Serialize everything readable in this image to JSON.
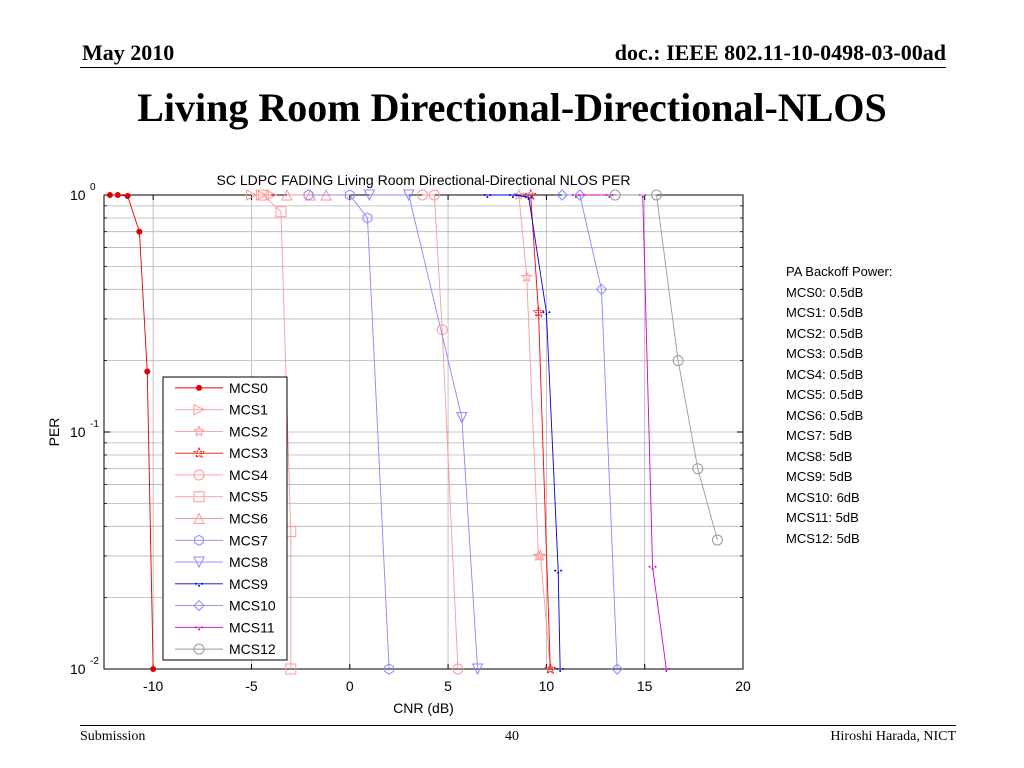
{
  "header": {
    "date": "May 2010",
    "doc": "doc.: IEEE 802.11-10-0498-03-00ad"
  },
  "slide_title": "Living Room Directional-Directional-NLOS",
  "footer": {
    "left": "Submission",
    "page": "40",
    "right": "Hiroshi Harada, NICT"
  },
  "side_note": {
    "lines": [
      "PA Backoff Power:",
      "MCS0: 0.5dB",
      "MCS1: 0.5dB",
      "MCS2: 0.5dB",
      "MCS3: 0.5dB",
      "MCS4: 0.5dB",
      "MCS5: 0.5dB",
      "MCS6: 0.5dB",
      "MCS7: 5dB",
      "MCS8: 5dB",
      "MCS9: 5dB",
      "MCS10: 6dB",
      "MCS11: 5dB",
      "MCS12: 5dB"
    ]
  },
  "chart_data": {
    "type": "line",
    "title": "SC LDPC FADING Living Room Directional-Directional NLOS PER",
    "xlabel": "CNR (dB)",
    "ylabel": "PER",
    "xlim": [
      -12.5,
      20
    ],
    "ylim": [
      0.01,
      1
    ],
    "yscale": "log",
    "x_ticks": [
      -10,
      -5,
      0,
      5,
      10,
      15,
      20
    ],
    "y_ticks": [
      {
        "base": "10",
        "exp": "0",
        "value": 1
      },
      {
        "base": "10",
        "exp": "-1",
        "value": 0.1
      },
      {
        "base": "10",
        "exp": "-2",
        "value": 0.01
      }
    ],
    "grid": true,
    "legend_position": "lower-left",
    "series": [
      {
        "name": "MCS0",
        "color": "#e00000",
        "marker": "dot",
        "x": [
          -12.2,
          -11.8,
          -11.3,
          -10.7,
          -10.3,
          -10.0
        ],
        "y": [
          1,
          1,
          0.99,
          0.7,
          0.18,
          0.01
        ]
      },
      {
        "name": "MCS1",
        "color": "#ff9999",
        "marker": "triangle-right",
        "x": [
          -5,
          -4.5,
          -4.0
        ],
        "y": [
          1,
          1,
          1
        ]
      },
      {
        "name": "MCS2",
        "color": "#ff9999",
        "marker": "star",
        "x": [
          8.6,
          9.0,
          9.6,
          9.7,
          10.2
        ],
        "y": [
          1,
          0.45,
          0.03,
          0.03,
          0.01
        ]
      },
      {
        "name": "MCS3",
        "color": "#ff0000",
        "marker": "star-dot",
        "x": [
          9.2,
          9.6,
          10.2
        ],
        "y": [
          1,
          0.32,
          0.01
        ]
      },
      {
        "name": "MCS4",
        "color": "#ff9999",
        "marker": "circle",
        "x": [
          3.7,
          4.3,
          4.7,
          5.5
        ],
        "y": [
          1,
          1,
          0.27,
          0.01
        ]
      },
      {
        "name": "MCS5",
        "color": "#ff9999",
        "marker": "square",
        "x": [
          -4.4,
          -3.5,
          -3.0,
          -3.0
        ],
        "y": [
          1,
          0.85,
          0.038,
          0.01
        ]
      },
      {
        "name": "MCS6",
        "color": "#ff9999",
        "marker": "triangle-up",
        "x": [
          -3.2,
          -2.0,
          -1.2
        ],
        "y": [
          1,
          1,
          1
        ]
      },
      {
        "name": "MCS7",
        "color": "#8888ff",
        "marker": "hexagon",
        "x": [
          -2.1,
          0.0,
          0.9,
          2.0
        ],
        "y": [
          1,
          1,
          0.8,
          0.01
        ]
      },
      {
        "name": "MCS8",
        "color": "#8888ff",
        "marker": "triangle-down",
        "x": [
          1.0,
          3.0,
          5.7,
          6.5
        ],
        "y": [
          1,
          1,
          0.115,
          0.01
        ]
      },
      {
        "name": "MCS9",
        "color": "#0000dd",
        "marker": "dots",
        "x": [
          7.0,
          8.3,
          9.1,
          10.0,
          10.6,
          10.7
        ],
        "y": [
          1,
          1,
          0.98,
          0.32,
          0.026,
          0.01
        ]
      },
      {
        "name": "MCS10",
        "color": "#8888ff",
        "marker": "diamond",
        "x": [
          10.8,
          11.7,
          12.8,
          13.6
        ],
        "y": [
          1,
          1,
          0.4,
          0.01
        ]
      },
      {
        "name": "MCS11",
        "color": "#cc00cc",
        "marker": "dots",
        "x": [
          11.5,
          13.2,
          14.9,
          15.4,
          16.1
        ],
        "y": [
          1,
          1,
          1,
          0.027,
          0.01
        ]
      },
      {
        "name": "MCS12",
        "color": "#999999",
        "marker": "circle",
        "x": [
          13.5,
          15.6,
          16.7,
          17.7,
          18.7
        ],
        "y": [
          1,
          1,
          0.2,
          0.07,
          0.035
        ]
      }
    ]
  }
}
